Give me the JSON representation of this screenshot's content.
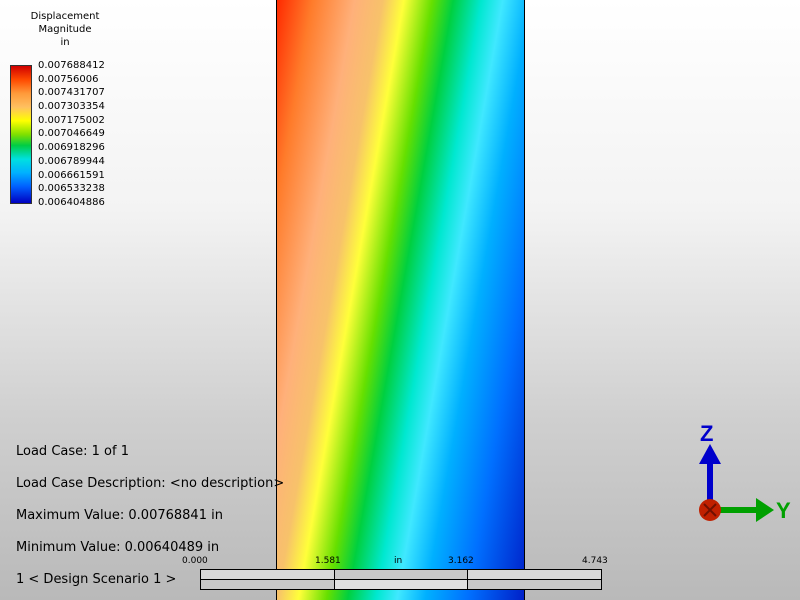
{
  "legend": {
    "title_line1": "Displacement",
    "title_line2": "Magnitude",
    "title_line3": "in",
    "values": [
      "0.007688412",
      "0.00756006",
      "0.007431707",
      "0.007303354",
      "0.007175002",
      "0.007046649",
      "0.006918296",
      "0.006789944",
      "0.006661591",
      "0.006533238",
      "0.006404886"
    ]
  },
  "info": {
    "load_case": "Load Case:  1 of 1",
    "load_case_description": "Load Case Description:  <no description>",
    "maximum_value": "Maximum Value: 0.00768841 in",
    "minimum_value": "Minimum Value: 0.00640489 in",
    "scenario": "1 < Design Scenario 1 >"
  },
  "scale": {
    "tick_0": "0.000",
    "tick_1": "1.581",
    "unit": "in",
    "tick_2": "3.162",
    "tick_3": "4.743"
  },
  "triad": {
    "z_label": "Z",
    "y_label": "Y",
    "z_color": "#0000cc",
    "y_color": "#00a000",
    "origin_color": "#c02000"
  }
}
